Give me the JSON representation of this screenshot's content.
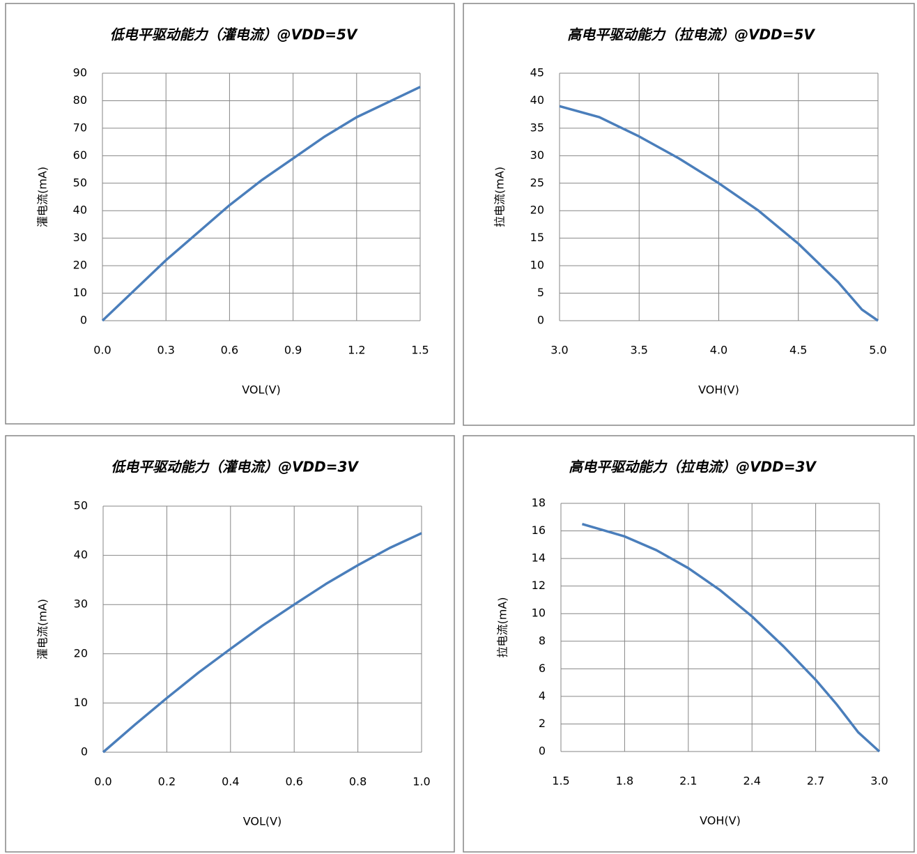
{
  "chart_data": [
    {
      "type": "line",
      "title": "低电平驱动能力（灌电流）@VDD=5V",
      "xlabel": "VOL(V)",
      "ylabel": "灌电流(mA)",
      "x": [
        0,
        0.15,
        0.3,
        0.45,
        0.6,
        0.75,
        0.9,
        1.05,
        1.2,
        1.35,
        1.5
      ],
      "values": [
        0,
        11,
        22,
        32,
        42,
        51,
        59,
        67,
        74,
        79.5,
        85
      ],
      "color": "#4a7ebb",
      "xlim": [
        0,
        1.5
      ],
      "xticks": [
        {
          "value": 0,
          "label": "0.0"
        },
        0.3,
        0.6,
        0.9,
        1.2,
        1.5
      ],
      "ylim": [
        0,
        90
      ],
      "yticks": [
        0,
        10,
        20,
        30,
        40,
        50,
        60,
        70,
        80,
        90
      ],
      "grid": true
    },
    {
      "type": "line",
      "title": "高电平驱动能力（拉电流）@VDD=5V",
      "xlabel": "VOH(V)",
      "ylabel": "拉电流(mA)",
      "x": [
        3.0,
        3.25,
        3.5,
        3.75,
        4.0,
        4.25,
        4.5,
        4.75,
        4.9,
        5.0
      ],
      "values": [
        39,
        37,
        33.5,
        29.5,
        25,
        20,
        14,
        7,
        2,
        0
      ],
      "color": "#4a7ebb",
      "xlim": [
        3,
        5
      ],
      "xticks": [
        {
          "value": 3,
          "label": "3.0"
        },
        3.5,
        {
          "value": 4,
          "label": "4.0"
        },
        4.5,
        {
          "value": 5,
          "label": "5.0"
        }
      ],
      "ylim": [
        0,
        45
      ],
      "yticks": [
        0,
        5,
        10,
        15,
        20,
        25,
        30,
        35,
        40,
        45
      ],
      "grid": true
    },
    {
      "type": "line",
      "title": "低电平驱动能力（灌电流）@VDD=3V",
      "xlabel": "VOL(V)",
      "ylabel": "灌电流(mA)",
      "x": [
        0,
        0.1,
        0.2,
        0.3,
        0.4,
        0.5,
        0.6,
        0.7,
        0.8,
        0.9,
        1.0
      ],
      "values": [
        0,
        5.6,
        11,
        16.2,
        21,
        25.7,
        30,
        34.2,
        38,
        41.5,
        44.5
      ],
      "color": "#4a7ebb",
      "xlim": [
        0,
        1
      ],
      "xticks": [
        {
          "value": 0,
          "label": "0.0"
        },
        0.2,
        0.4,
        0.6,
        0.8,
        {
          "value": 1,
          "label": "1.0"
        }
      ],
      "ylim": [
        0,
        50
      ],
      "yticks": [
        0,
        10,
        20,
        30,
        40,
        50
      ],
      "grid": true
    },
    {
      "type": "line",
      "title": "高电平驱动能力（拉电流）@VDD=3V",
      "xlabel": "VOH(V)",
      "ylabel": "拉电流(mA)",
      "x": [
        1.6,
        1.8,
        1.95,
        2.1,
        2.25,
        2.4,
        2.55,
        2.7,
        2.8,
        2.9,
        3.0
      ],
      "values": [
        16.5,
        15.6,
        14.6,
        13.3,
        11.7,
        9.8,
        7.6,
        5.2,
        3.4,
        1.4,
        0
      ],
      "color": "#4a7ebb",
      "xlim": [
        1.5,
        3
      ],
      "xticks": [
        1.5,
        1.8,
        2.1,
        2.4,
        2.7,
        {
          "value": 3,
          "label": "3.0"
        }
      ],
      "ylim": [
        0,
        18
      ],
      "yticks": [
        0,
        2,
        4,
        6,
        8,
        10,
        12,
        14,
        16,
        18
      ],
      "grid": true
    }
  ]
}
